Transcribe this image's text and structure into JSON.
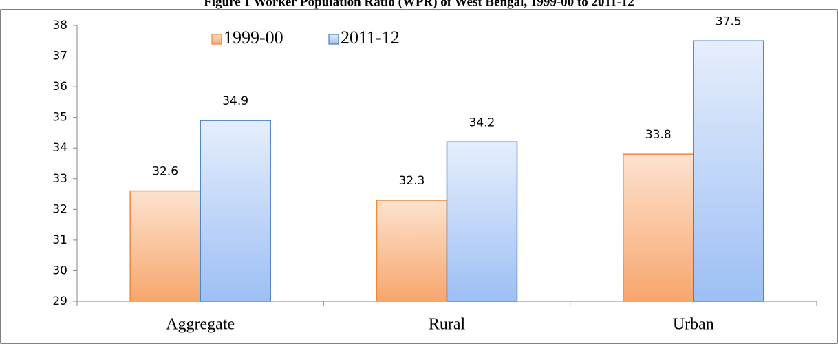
{
  "chart_data": {
    "type": "bar",
    "title": "Figure 1 Worker Population Ratio (WPR) of West Bengal, 1999-00 to 2011-12",
    "categories": [
      "Aggregate",
      "Rural",
      "Urban"
    ],
    "series": [
      {
        "name": "1999-00",
        "color": "#f0883a",
        "values": [
          32.6,
          32.3,
          33.8
        ]
      },
      {
        "name": "2011-12",
        "color": "#4a7ebb",
        "values": [
          34.9,
          34.2,
          37.5
        ]
      }
    ],
    "ylim": [
      29,
      38
    ],
    "yticks": [
      29,
      30,
      31,
      32,
      33,
      34,
      35,
      36,
      37,
      38
    ],
    "legend": "top-left",
    "grid": false
  }
}
